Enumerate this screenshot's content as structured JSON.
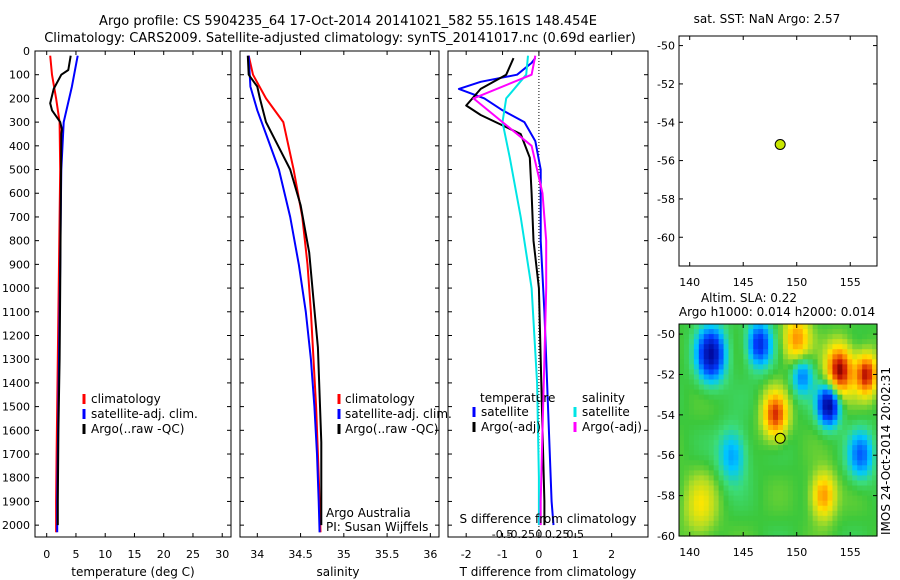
{
  "header": {
    "line1": "Argo profile: CS 5904235_64 17-Oct-2014 20141021_582 55.161S 148.454E",
    "line2": "Climatology: CARS2009. Satellite-adjusted climatology: synTS_20141017.nc (0.69d earlier)"
  },
  "colors": {
    "climatology": "#ff0000",
    "satellite": "#0000ff",
    "argo": "#000000",
    "salinity_satellite": "#00e5e5",
    "salinity_argo": "#ff00ff",
    "marker": "#c8e600"
  },
  "chart_data": [
    {
      "id": "temperature_profile",
      "type": "line",
      "xlabel": "temperature (deg C)",
      "ylabel": "",
      "xlim": [
        -2,
        31.5
      ],
      "ylim": [
        2050,
        0
      ],
      "xticks": [
        0,
        5,
        10,
        15,
        20,
        25,
        30
      ],
      "yticks": [
        0,
        100,
        200,
        300,
        400,
        500,
        600,
        700,
        800,
        900,
        1000,
        1100,
        1200,
        1300,
        1400,
        1500,
        1600,
        1700,
        1800,
        1900,
        2000
      ],
      "legend": [
        "climatology",
        "satellite-adj. clim.",
        "Argo(..raw -QC)"
      ],
      "series": [
        {
          "name": "climatology",
          "color": "#ff0000",
          "points": [
            [
              0.6,
              20
            ],
            [
              0.9,
              100
            ],
            [
              1.6,
              200
            ],
            [
              2.2,
              300
            ],
            [
              2.3,
              500
            ],
            [
              2.2,
              700
            ],
            [
              2.1,
              900
            ],
            [
              2.0,
              1100
            ],
            [
              1.9,
              1300
            ],
            [
              1.8,
              1500
            ],
            [
              1.7,
              1700
            ],
            [
              1.6,
              1900
            ],
            [
              1.6,
              2030
            ]
          ]
        },
        {
          "name": "satellite-adj. clim.",
          "color": "#0000ff",
          "points": [
            [
              5.3,
              20
            ],
            [
              4.3,
              150
            ],
            [
              2.9,
              300
            ],
            [
              2.5,
              500
            ],
            [
              2.4,
              700
            ],
            [
              2.3,
              900
            ],
            [
              2.2,
              1100
            ],
            [
              2.1,
              1300
            ],
            [
              2.0,
              1500
            ],
            [
              1.9,
              1700
            ],
            [
              1.8,
              1900
            ],
            [
              1.8,
              2030
            ]
          ]
        },
        {
          "name": "Argo(..raw -QC)",
          "color": "#000000",
          "points": [
            [
              4.1,
              20
            ],
            [
              3.7,
              80
            ],
            [
              2.5,
              100
            ],
            [
              1.2,
              160
            ],
            [
              0.6,
              220
            ],
            [
              0.9,
              250
            ],
            [
              1.6,
              275
            ],
            [
              2.3,
              300
            ],
            [
              2.6,
              330
            ],
            [
              2.5,
              350
            ],
            [
              2.4,
              700
            ],
            [
              2.3,
              1000
            ],
            [
              2.2,
              1300
            ],
            [
              2.0,
              1600
            ],
            [
              1.9,
              1900
            ],
            [
              1.9,
              2000
            ]
          ]
        }
      ]
    },
    {
      "id": "salinity_profile",
      "type": "line",
      "xlabel": "salinity",
      "xlim": [
        33.8,
        36.1
      ],
      "ylim": [
        2050,
        0
      ],
      "xticks": [
        34,
        34.5,
        35,
        35.5,
        36
      ],
      "xtick_labels": [
        "34",
        "34.5",
        "35",
        "35.5",
        "36"
      ],
      "legend": [
        "climatology",
        "satellite-adj. clim.",
        "Argo(..raw -QC)"
      ],
      "annotations": [
        "Argo Australia",
        "PI: Susan Wijffels"
      ],
      "series": [
        {
          "name": "climatology",
          "color": "#ff0000",
          "points": [
            [
              33.9,
              20
            ],
            [
              33.95,
              100
            ],
            [
              34.1,
              200
            ],
            [
              34.3,
              300
            ],
            [
              34.42,
              500
            ],
            [
              34.52,
              700
            ],
            [
              34.58,
              900
            ],
            [
              34.62,
              1100
            ],
            [
              34.65,
              1300
            ],
            [
              34.68,
              1500
            ],
            [
              34.7,
              1700
            ],
            [
              34.72,
              1900
            ],
            [
              34.73,
              2030
            ]
          ]
        },
        {
          "name": "satellite-adj. clim.",
          "color": "#0000ff",
          "points": [
            [
              33.9,
              20
            ],
            [
              33.92,
              150
            ],
            [
              34.0,
              250
            ],
            [
              34.1,
              350
            ],
            [
              34.25,
              500
            ],
            [
              34.38,
              700
            ],
            [
              34.48,
              900
            ],
            [
              34.56,
              1100
            ],
            [
              34.62,
              1300
            ],
            [
              34.66,
              1500
            ],
            [
              34.69,
              1700
            ],
            [
              34.71,
              1900
            ],
            [
              34.72,
              2030
            ]
          ]
        },
        {
          "name": "Argo(..raw -QC)",
          "color": "#000000",
          "points": [
            [
              33.89,
              20
            ],
            [
              33.9,
              100
            ],
            [
              34.0,
              150
            ],
            [
              34.03,
              200
            ],
            [
              34.1,
              300
            ],
            [
              34.24,
              400
            ],
            [
              34.38,
              500
            ],
            [
              34.5,
              650
            ],
            [
              34.6,
              850
            ],
            [
              34.65,
              1050
            ],
            [
              34.7,
              1250
            ],
            [
              34.72,
              1450
            ],
            [
              34.74,
              1650
            ],
            [
              34.74,
              2000
            ]
          ]
        }
      ]
    },
    {
      "id": "difference_profile",
      "type": "line",
      "xlabel": "T difference from climatology",
      "title_inner": "S difference from climatology",
      "xlim": [
        -2.5,
        3
      ],
      "ylim": [
        2050,
        0
      ],
      "xticks": [
        -2,
        -1,
        0,
        1,
        2
      ],
      "s_tick_labels": [
        "-0.5",
        "-0.25",
        "0",
        "0.25",
        "0.5"
      ],
      "s_xticks": [
        -1,
        -0.5,
        0,
        0.5,
        1
      ],
      "legend_temperature_title": "temperature",
      "legend_salinity_title": "salinity",
      "legend": [
        "satellite",
        "Argo(-adj)",
        "satellite",
        "Argo(-adj)"
      ],
      "series": [
        {
          "name": "satellite",
          "group": "temperature",
          "color": "#0000ff",
          "points": [
            [
              -0.1,
              30
            ],
            [
              -0.2,
              50
            ],
            [
              -0.6,
              100
            ],
            [
              -1.6,
              130
            ],
            [
              -2.2,
              160
            ],
            [
              -1.5,
              200
            ],
            [
              -1.0,
              250
            ],
            [
              -0.4,
              300
            ],
            [
              -0.1,
              380
            ],
            [
              0.05,
              500
            ],
            [
              0.05,
              800
            ],
            [
              0.15,
              1100
            ],
            [
              0.25,
              1500
            ],
            [
              0.35,
              1900
            ],
            [
              0.4,
              2000
            ]
          ]
        },
        {
          "name": "Argo(-adj)",
          "group": "temperature",
          "color": "#000000",
          "points": [
            [
              -0.7,
              30
            ],
            [
              -0.9,
              100
            ],
            [
              -1.6,
              160
            ],
            [
              -2.0,
              230
            ],
            [
              -1.6,
              270
            ],
            [
              -0.5,
              350
            ],
            [
              -0.25,
              450
            ],
            [
              -0.2,
              600
            ],
            [
              -0.15,
              800
            ],
            [
              0.0,
              1000
            ],
            [
              0.05,
              1300
            ],
            [
              0.1,
              1600
            ],
            [
              0.15,
              1900
            ],
            [
              0.15,
              2000
            ]
          ]
        },
        {
          "name": "satellite",
          "group": "salinity",
          "color": "#00e5e5",
          "points": [
            [
              -0.3,
              20
            ],
            [
              -0.35,
              100
            ],
            [
              -0.9,
              200
            ],
            [
              -1.0,
              300
            ],
            [
              -0.8,
              450
            ],
            [
              -0.5,
              700
            ],
            [
              -0.2,
              1000
            ],
            [
              -0.05,
              1400
            ],
            [
              0.0,
              1800
            ],
            [
              0.0,
              2000
            ]
          ]
        },
        {
          "name": "Argo(-adj)",
          "group": "salinity",
          "color": "#ff00ff",
          "points": [
            [
              -0.1,
              20
            ],
            [
              -0.2,
              100
            ],
            [
              -1.8,
              200
            ],
            [
              -1.0,
              300
            ],
            [
              -0.2,
              400
            ],
            [
              0.1,
              600
            ],
            [
              0.2,
              800
            ],
            [
              0.2,
              1000
            ],
            [
              0.15,
              1300
            ],
            [
              0.1,
              1600
            ],
            [
              0.05,
              1900
            ],
            [
              0.05,
              2000
            ]
          ]
        }
      ]
    },
    {
      "id": "sst_map",
      "type": "scatter",
      "title": "sat. SST: NaN Argo: 2.57",
      "xlim": [
        139,
        157.5
      ],
      "ylim": [
        -61.5,
        -49.5
      ],
      "xticks": [
        140,
        145,
        150,
        155
      ],
      "yticks": [
        -50,
        -52,
        -54,
        -56,
        -58,
        -60
      ],
      "points": [
        {
          "x": 148.454,
          "y": -55.161
        }
      ]
    },
    {
      "id": "sla_map",
      "type": "heatmap",
      "title_line1": "Altim. SLA: 0.22",
      "title_line2": "Argo h1000: 0.014 h2000: 0.014",
      "xlim": [
        139,
        157.5
      ],
      "ylim": [
        -60,
        -49.5
      ],
      "xticks": [
        140,
        145,
        150,
        155
      ],
      "yticks": [
        -50,
        -52,
        -54,
        -56,
        -58,
        -60
      ],
      "points": [
        {
          "x": 148.454,
          "y": -55.161
        }
      ],
      "features": [
        {
          "x": 142.0,
          "y": -51.0,
          "sign": -1,
          "amp": 0.9,
          "r": 1.3
        },
        {
          "x": 146.5,
          "y": -50.5,
          "sign": -1,
          "amp": 0.7,
          "r": 1.1
        },
        {
          "x": 150.0,
          "y": -50.3,
          "sign": 1,
          "amp": 0.6,
          "r": 1.2
        },
        {
          "x": 154.0,
          "y": -51.8,
          "sign": 1,
          "amp": 1.0,
          "r": 1.2
        },
        {
          "x": 156.5,
          "y": -52.0,
          "sign": 1,
          "amp": 0.9,
          "r": 1.0
        },
        {
          "x": 153.0,
          "y": -53.5,
          "sign": -1,
          "amp": 1.0,
          "r": 1.0
        },
        {
          "x": 148.0,
          "y": -54.0,
          "sign": 1,
          "amp": 0.8,
          "r": 1.1
        },
        {
          "x": 150.5,
          "y": -52.0,
          "sign": -1,
          "amp": 0.5,
          "r": 1.0
        },
        {
          "x": 144.0,
          "y": -56.0,
          "sign": -1,
          "amp": 0.4,
          "r": 1.3
        },
        {
          "x": 152.5,
          "y": -58.0,
          "sign": 1,
          "amp": 0.6,
          "r": 1.1
        },
        {
          "x": 156.0,
          "y": -56.0,
          "sign": -1,
          "amp": 0.5,
          "r": 1.2
        },
        {
          "x": 141.0,
          "y": -58.5,
          "sign": 1,
          "amp": 0.3,
          "r": 1.5
        }
      ],
      "side_label": "IMOS 24-Oct-2014 20:02:31"
    }
  ]
}
